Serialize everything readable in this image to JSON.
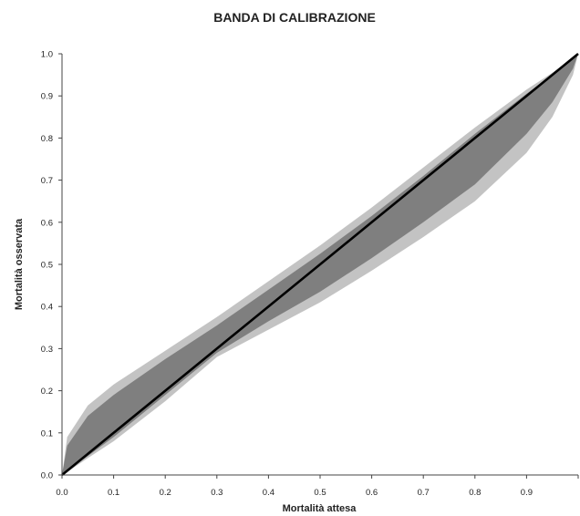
{
  "chart_data": {
    "type": "area",
    "title": "BANDA DI CALIBRAZIONE",
    "xlabel": "Mortalità attesa",
    "ylabel": "Mortalità osservata",
    "xlim": [
      0,
      1
    ],
    "ylim": [
      0,
      1
    ],
    "x_ticks": [
      "0.0",
      "0.1",
      "0.2",
      "0.3",
      "0.4",
      "0.5",
      "0.6",
      "0.7",
      "0.8",
      "0.9"
    ],
    "y_ticks": [
      "0.0",
      "0.1",
      "0.2",
      "0.3",
      "0.4",
      "0.5",
      "0.6",
      "0.7",
      "0.8",
      "0.9",
      "1.0"
    ],
    "grid": false,
    "legend": "none",
    "x": [
      0,
      0.01,
      0.05,
      0.1,
      0.2,
      0.3,
      0.4,
      0.5,
      0.6,
      0.7,
      0.8,
      0.9,
      0.95,
      0.99,
      1.0
    ],
    "series": [
      {
        "role": "outer-upper",
        "color": "#c3c3c3",
        "values": [
          0,
          0.09,
          0.165,
          0.215,
          0.295,
          0.375,
          0.46,
          0.545,
          0.635,
          0.73,
          0.825,
          0.915,
          0.955,
          0.99,
          1.0
        ]
      },
      {
        "role": "outer-lower",
        "color": "#c3c3c3",
        "values": [
          0,
          0.007,
          0.04,
          0.08,
          0.175,
          0.28,
          0.345,
          0.41,
          0.485,
          0.565,
          0.65,
          0.765,
          0.85,
          0.95,
          1.0
        ]
      },
      {
        "role": "inner-upper",
        "color": "#7f7f7f",
        "values": [
          0,
          0.07,
          0.14,
          0.19,
          0.275,
          0.355,
          0.44,
          0.525,
          0.615,
          0.71,
          0.81,
          0.905,
          0.95,
          0.99,
          1.0
        ]
      },
      {
        "role": "inner-lower",
        "color": "#7f7f7f",
        "values": [
          0,
          0.01,
          0.045,
          0.09,
          0.19,
          0.29,
          0.365,
          0.435,
          0.515,
          0.6,
          0.69,
          0.81,
          0.885,
          0.965,
          1.0
        ]
      },
      {
        "role": "diagonal",
        "color": "#000000",
        "values": [
          0,
          0.01,
          0.05,
          0.1,
          0.2,
          0.3,
          0.4,
          0.5,
          0.6,
          0.7,
          0.8,
          0.9,
          0.95,
          0.99,
          1.0
        ]
      }
    ]
  }
}
